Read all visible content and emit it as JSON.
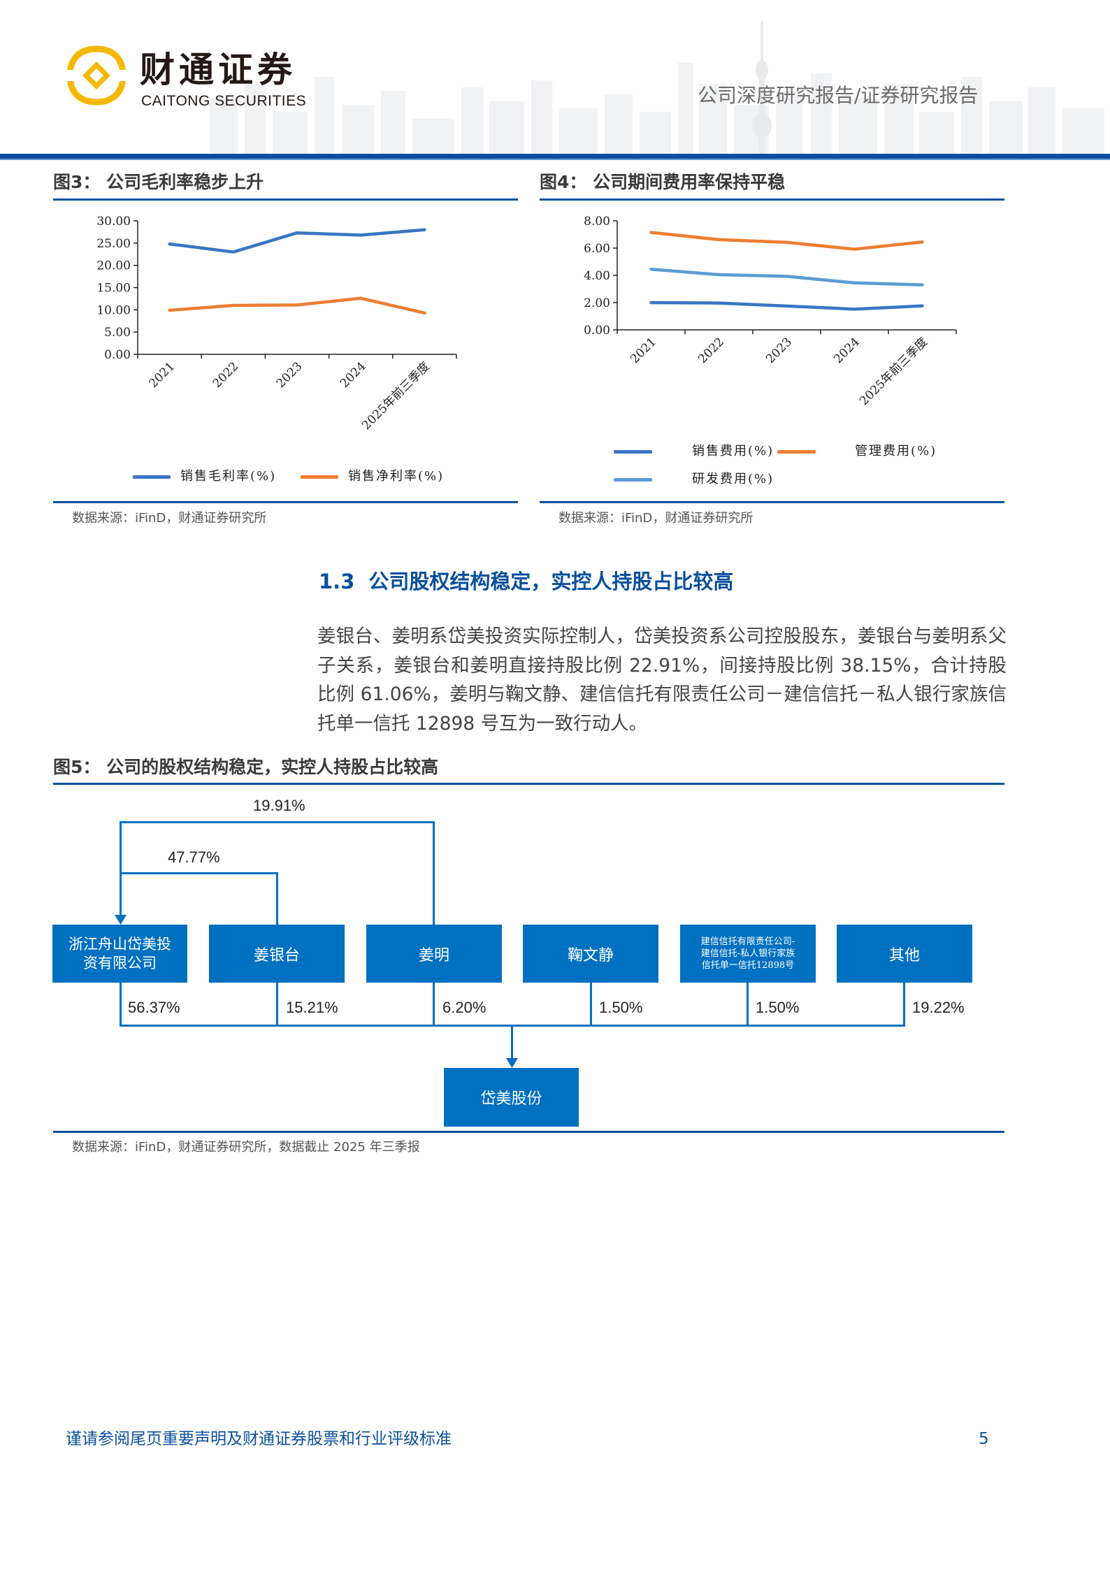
{
  "header": {
    "logo_cn": "财通证券",
    "logo_en": "CAITONG SECURITIES",
    "report_type": "公司深度研究报告/证券研究报告"
  },
  "colors": {
    "brand_blue": "#0a4f9e",
    "box_blue": "#0070c0",
    "series_blue": "#3a75c4",
    "series_orange": "#ed7d31",
    "series_lightblue": "#5b9bd5",
    "logo_gold": "#f5b800"
  },
  "figures": {
    "fig3": {
      "title": "图3：  公司毛利率稳步上升",
      "source": "数据来源：iFinD，财通证券研究所"
    },
    "fig4": {
      "title": "图4：  公司期间费用率保持平稳",
      "source": "数据来源：iFinD，财通证券研究所"
    },
    "fig5": {
      "title": "图5：  公司的股权结构稳定，实控人持股占比较高",
      "source": "数据来源：iFinD，财通证券研究所，数据截止 2025 年三季报"
    }
  },
  "chart_data": [
    {
      "type": "line",
      "title": "公司毛利率稳步上升",
      "categories": [
        "2021",
        "2022",
        "2023",
        "2024",
        "2025年前三季度"
      ],
      "series": [
        {
          "name": "销售毛利率(%)",
          "color": "#3a75c4",
          "values": [
            24.8,
            23.0,
            27.3,
            26.8,
            28.0
          ]
        },
        {
          "name": "销售净利率(%)",
          "color": "#ed7d31",
          "values": [
            9.9,
            11.0,
            11.1,
            12.6,
            9.3
          ]
        }
      ],
      "yticks": [
        "0.00",
        "5.00",
        "10.00",
        "15.00",
        "20.00",
        "25.00",
        "30.00"
      ],
      "ylim": [
        0,
        30
      ],
      "xlabel": "",
      "ylabel": "",
      "grid": false,
      "legend_position": "bottom"
    },
    {
      "type": "line",
      "title": "公司期间费用率保持平稳",
      "categories": [
        "2021",
        "2022",
        "2023",
        "2024",
        "2025年前三季度"
      ],
      "series": [
        {
          "name": "销售费用(%)",
          "color": "#3a75c4",
          "values": [
            2.0,
            1.97,
            1.75,
            1.52,
            1.76
          ]
        },
        {
          "name": "管理费用(%)",
          "color": "#ed7d31",
          "values": [
            7.15,
            6.62,
            6.42,
            5.92,
            6.45
          ]
        },
        {
          "name": "研发费用(%)",
          "color": "#5b9bd5",
          "values": [
            4.45,
            4.05,
            3.93,
            3.45,
            3.3
          ]
        }
      ],
      "yticks": [
        "0.00",
        "2.00",
        "4.00",
        "6.00",
        "8.00"
      ],
      "ylim": [
        0,
        8
      ],
      "xlabel": "",
      "ylabel": "",
      "grid": false,
      "legend_position": "bottom"
    }
  ],
  "section": {
    "number": "1.3",
    "title": "公司股权结构稳定，实控人持股占比较高",
    "paragraph": "姜银台、姜明系岱美投资实际控制人，岱美投资系公司控股股东，姜银台与姜明系父子关系，姜银台和姜明直接持股比例 22.91%，间接持股比例 38.15%，合计持股比例 61.06%，姜明与鞠文静、建信信托有限责任公司－建信信托－私人银行家族信托单一信托 12898 号互为一致行动人。"
  },
  "ownership": {
    "top_links": [
      {
        "from": "姜明",
        "to": "浙江舟山岱美投资有限公司",
        "pct": "19.91%"
      },
      {
        "from": "姜银台",
        "to": "浙江舟山岱美投资有限公司",
        "pct": "47.77%"
      }
    ],
    "shareholders": [
      {
        "name": "浙江舟山岱美投资有限公司",
        "line1": "浙江舟山岱美投",
        "line2": "资有限公司",
        "pct": "56.37%"
      },
      {
        "name": "姜银台",
        "pct": "15.21%"
      },
      {
        "name": "姜明",
        "pct": "6.20%"
      },
      {
        "name": "鞠文静",
        "pct": "1.50%"
      },
      {
        "name": "建信信托有限责任公司-建信信托-私人银行家族信托单一信托12898号",
        "line1": "建信信托有限责任公司-",
        "line2": "建信信托-私人银行家族",
        "line3": "信托单一信托12898号",
        "pct": "1.50%"
      },
      {
        "name": "其他",
        "pct": "19.22%"
      }
    ],
    "company": "岱美股份"
  },
  "footer": {
    "disclaimer": "谨请参阅尾页重要声明及财通证券股票和行业评级标准",
    "page": "5"
  }
}
